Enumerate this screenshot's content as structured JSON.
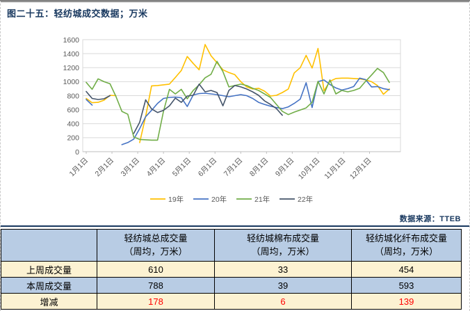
{
  "title": "图二十五：轻纺城成交数据；万米",
  "source_note": "数据来源：TTEB",
  "colors": {
    "title_navy": "#17375E",
    "series_19": "#FFC000",
    "series_20": "#4472C4",
    "series_21": "#70AD47",
    "series_22": "#44546A",
    "grid": "#D9D9D9",
    "axis_text": "#595959",
    "table_blue": "#B8CCE4",
    "table_cream": "#FCF2D2",
    "delta_red": "#FF0000"
  },
  "chart_data": {
    "type": "line",
    "title": "",
    "xlabel": "",
    "ylabel": "",
    "ylim": [
      0,
      1600
    ],
    "ytick_step": 200,
    "grid": "horizontal",
    "legend_position": "bottom",
    "x_tick_labels": [
      "1月1日",
      "2月1日",
      "3月1日",
      "4月1日",
      "5月1日",
      "6月1日",
      "7月1日",
      "8月1日",
      "9月1日",
      "10月1日",
      "11月1日",
      "12月1日"
    ],
    "x_unit": "week-of-year (52 weekly points per series, values estimated from chart, 万米)",
    "series": [
      {
        "name": "19年",
        "color": "#FFC000",
        "values": [
          760,
          700,
          705,
          735,
          805,
          800,
          null,
          null,
          null,
          130,
          505,
          940,
          945,
          955,
          965,
          1060,
          1160,
          1360,
          1260,
          1170,
          1530,
          1370,
          1270,
          1170,
          1130,
          1100,
          1000,
          925,
          895,
          905,
          865,
          795,
          805,
          845,
          895,
          1125,
          1200,
          1375,
          1195,
          1475,
          870,
          1005,
          1045,
          1050,
          1050,
          1045,
          1040,
          1025,
          1000,
          945,
          820,
          895
        ]
      },
      {
        "name": "20年",
        "color": "#4472C4",
        "values": [
          745,
          665,
          null,
          null,
          null,
          null,
          100,
          130,
          180,
          330,
          500,
          590,
          690,
          760,
          775,
          780,
          770,
          645,
          810,
          830,
          835,
          825,
          815,
          800,
          785,
          800,
          815,
          800,
          760,
          705,
          675,
          650,
          630,
          615,
          640,
          690,
          750,
          985,
          630,
          1000,
          1025,
          960,
          910,
          880,
          900,
          930,
          1050,
          1030,
          925,
          930,
          900,
          885
        ]
      },
      {
        "name": "21年",
        "color": "#70AD47",
        "values": [
          990,
          890,
          1040,
          1000,
          970,
          790,
          575,
          535,
          210,
          175,
          170,
          165,
          165,
          575,
          890,
          825,
          890,
          755,
          875,
          955,
          1055,
          1105,
          1290,
          1145,
          925,
          945,
          965,
          945,
          905,
          875,
          825,
          775,
          675,
          575,
          530,
          565,
          595,
          625,
          705,
          1005,
          825,
          1025,
          825,
          875,
          855,
          875,
          905,
          1005,
          1095,
          1190,
          1130,
          990
        ]
      },
      {
        "name": "22年",
        "color": "#44546A",
        "values": [
          860,
          760,
          745,
          755,
          800,
          null,
          null,
          null,
          260,
          420,
          740,
          610,
          560,
          590,
          655,
          765,
          705,
          795,
          805,
          965,
          855,
          875,
          845,
          655,
          875,
          945,
          925,
          895,
          855,
          805,
          725,
          675,
          615,
          520,
          null,
          null,
          null,
          null,
          null,
          null,
          null,
          null,
          null,
          null,
          null,
          null,
          null,
          null,
          null,
          null,
          null,
          null
        ]
      }
    ]
  },
  "table": {
    "columns": [
      {
        "line1": "",
        "line2": ""
      },
      {
        "line1": "轻纺城总成交量",
        "line2": "（周均，万米）"
      },
      {
        "line1": "轻纺城棉布成交量",
        "line2": "（周均，万米）"
      },
      {
        "line1": "轻纺城化纤布成交量",
        "line2": "（周均，万米）"
      }
    ],
    "rows": [
      {
        "label": "上周成交量",
        "values": [
          "610",
          "33",
          "454"
        ]
      },
      {
        "label": "本周成交量",
        "values": [
          "788",
          "39",
          "593"
        ]
      },
      {
        "label": "增减",
        "values": [
          "178",
          "6",
          "139"
        ]
      }
    ]
  }
}
